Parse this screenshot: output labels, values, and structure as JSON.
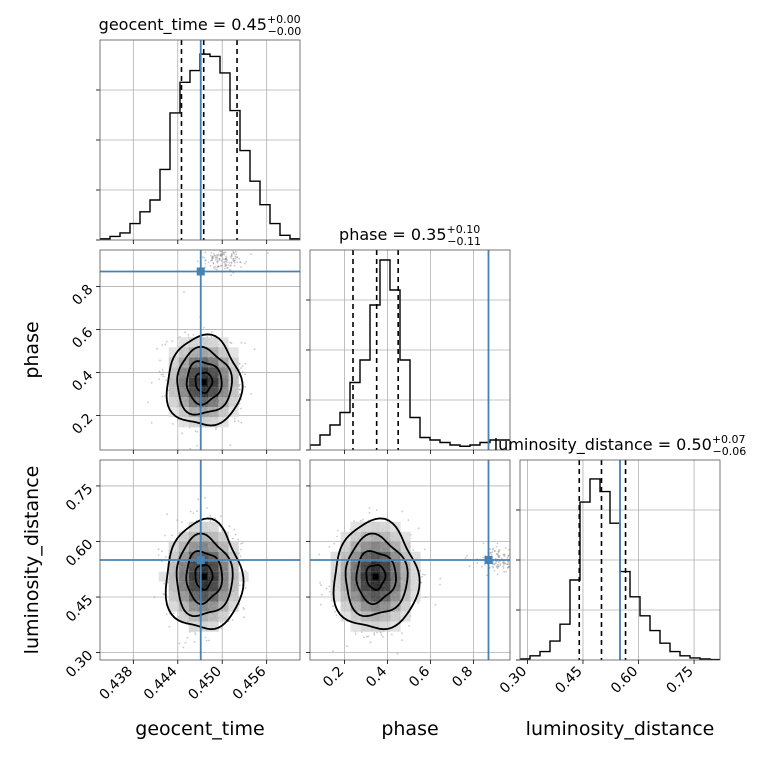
{
  "chart_data": {
    "type": "corner",
    "parameters": [
      "geocent_time",
      "phase",
      "luminosity_distance"
    ],
    "truths": {
      "geocent_time": 0.4471,
      "phase": 0.87,
      "luminosity_distance": 0.55
    },
    "titles": [
      {
        "param": "geocent_time",
        "prefix": "geocent_time = 0.45",
        "plus": "+0.00",
        "minus": "−0.00"
      },
      {
        "param": "phase",
        "prefix": "phase = 0.35",
        "plus": "+0.10",
        "minus": "−0.11"
      },
      {
        "param": "luminosity_distance",
        "prefix": "luminosity_distance = 0.50",
        "plus": "+0.07",
        "minus": "−0.06"
      }
    ],
    "axes": {
      "geocent_time": {
        "range": [
          0.4335,
          0.4605
        ],
        "ticks": [
          0.438,
          0.444,
          0.45,
          0.456
        ],
        "tick_labels": [
          "0.438",
          "0.444",
          "0.450",
          "0.456"
        ]
      },
      "phase": {
        "range": [
          0.04,
          0.97
        ],
        "ticks": [
          0.2,
          0.4,
          0.6,
          0.8
        ],
        "tick_labels": [
          "0.2",
          "0.4",
          "0.6",
          "0.8"
        ]
      },
      "luminosity_distance": {
        "range": [
          0.28,
          0.82
        ],
        "ticks": [
          0.3,
          0.45,
          0.6,
          0.75
        ],
        "tick_labels": [
          "0.30",
          "0.45",
          "0.60",
          "0.75"
        ]
      }
    },
    "histograms": [
      {
        "param": "geocent_time",
        "bin_edges": [
          0.4335,
          0.43485,
          0.4362,
          0.43755,
          0.4389,
          0.44025,
          0.4416,
          0.44295,
          0.4443,
          0.44565,
          0.447,
          0.44835,
          0.4497,
          0.45105,
          0.4524,
          0.45375,
          0.4551,
          0.45645,
          0.4578,
          0.45915,
          0.4605
        ],
        "counts": [
          0.005,
          0.015,
          0.03,
          0.07,
          0.12,
          0.17,
          0.3,
          0.54,
          0.67,
          0.72,
          0.79,
          0.78,
          0.71,
          0.55,
          0.38,
          0.25,
          0.15,
          0.07,
          0.02,
          0.005
        ],
        "quantiles": [
          0.4445,
          0.4475,
          0.452
        ],
        "ylim": [
          0,
          0.85
        ]
      },
      {
        "param": "phase",
        "bin_edges": [
          0.04,
          0.0865,
          0.133,
          0.1795,
          0.226,
          0.2725,
          0.319,
          0.3655,
          0.412,
          0.4585,
          0.505,
          0.5515,
          0.598,
          0.6445,
          0.691,
          0.7375,
          0.784,
          0.8305,
          0.877,
          0.9235,
          0.97
        ],
        "counts": [
          0.02,
          0.06,
          0.1,
          0.15,
          0.27,
          0.36,
          0.58,
          0.76,
          0.64,
          0.36,
          0.13,
          0.05,
          0.04,
          0.03,
          0.02,
          0.015,
          0.02,
          0.03,
          0.04,
          0.04
        ],
        "quantiles": [
          0.24,
          0.35,
          0.45
        ],
        "ylim": [
          0,
          0.8
        ]
      },
      {
        "param": "luminosity_distance",
        "bin_edges": [
          0.28,
          0.307,
          0.334,
          0.361,
          0.388,
          0.415,
          0.442,
          0.469,
          0.496,
          0.523,
          0.55,
          0.577,
          0.604,
          0.631,
          0.658,
          0.685,
          0.712,
          0.739,
          0.766,
          0.793,
          0.82
        ],
        "counts": [
          0.005,
          0.02,
          0.04,
          0.09,
          0.17,
          0.38,
          0.75,
          0.86,
          0.8,
          0.65,
          0.42,
          0.3,
          0.21,
          0.14,
          0.08,
          0.04,
          0.02,
          0.01,
          0.005,
          0.002
        ],
        "quantiles": [
          0.44,
          0.5,
          0.565
        ],
        "ylim": [
          0,
          0.95
        ]
      }
    ],
    "joint": [
      {
        "x": "geocent_time",
        "y": "phase",
        "center": [
          0.4475,
          0.355
        ],
        "sd": [
          0.00205,
          0.085
        ],
        "secondary_cluster": [
          0.45,
          0.93
        ]
      },
      {
        "x": "geocent_time",
        "y": "luminosity_distance",
        "center": [
          0.4475,
          0.505
        ],
        "sd": [
          0.0021,
          0.06
        ]
      },
      {
        "x": "phase",
        "y": "luminosity_distance",
        "center": [
          0.345,
          0.505
        ],
        "sd": [
          0.08,
          0.06
        ],
        "secondary_cluster": [
          0.92,
          0.55
        ]
      }
    ],
    "grid": true
  }
}
